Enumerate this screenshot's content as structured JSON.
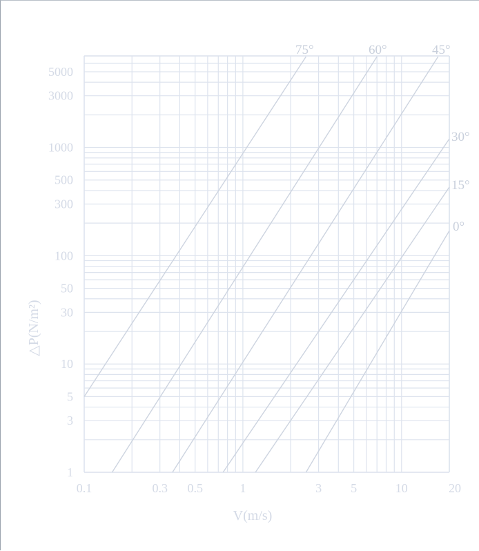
{
  "chart_data": {
    "type": "line",
    "xlabel": "V(m/s)",
    "ylabel": "△P(N/m²)",
    "x_scale": "log",
    "y_scale": "log",
    "xlim": [
      0.1,
      20
    ],
    "ylim": [
      1,
      7000
    ],
    "x_ticks": [
      {
        "value": 0.1,
        "label": "0.1"
      },
      {
        "value": 0.3,
        "label": "0.3"
      },
      {
        "value": 0.5,
        "label": "0.5"
      },
      {
        "value": 1,
        "label": "1"
      },
      {
        "value": 3,
        "label": "3"
      },
      {
        "value": 5,
        "label": "5"
      },
      {
        "value": 10,
        "label": "10"
      },
      {
        "value": 20,
        "label": "20"
      }
    ],
    "y_ticks": [
      {
        "value": 1,
        "label": "1"
      },
      {
        "value": 3,
        "label": "3"
      },
      {
        "value": 5,
        "label": "5"
      },
      {
        "value": 10,
        "label": "10"
      },
      {
        "value": 30,
        "label": "30"
      },
      {
        "value": 50,
        "label": "50"
      },
      {
        "value": 100,
        "label": "100"
      },
      {
        "value": 300,
        "label": "300"
      },
      {
        "value": 500,
        "label": "500"
      },
      {
        "value": 1000,
        "label": "1000"
      },
      {
        "value": 3000,
        "label": "3000"
      },
      {
        "value": 5000,
        "label": "5000"
      }
    ],
    "grid": true,
    "series": [
      {
        "name": "75°",
        "points": [
          [
            0.1,
            5
          ],
          [
            2.5,
            6900
          ]
        ]
      },
      {
        "name": "60°",
        "points": [
          [
            0.15,
            1
          ],
          [
            7.0,
            6900
          ]
        ]
      },
      {
        "name": "45°",
        "points": [
          [
            0.36,
            1
          ],
          [
            17.0,
            6900
          ]
        ]
      },
      {
        "name": "30°",
        "points": [
          [
            0.75,
            1
          ],
          [
            20,
            1200
          ]
        ]
      },
      {
        "name": "15°",
        "points": [
          [
            1.2,
            1
          ],
          [
            20,
            430
          ]
        ]
      },
      {
        "name": "0°",
        "points": [
          [
            2.5,
            1
          ],
          [
            20,
            170
          ]
        ]
      }
    ]
  },
  "colors": {
    "grid": "#dde3ee",
    "line": "#cdd4e0",
    "text": "#d4dae6",
    "angle_text": "#c9d0dc"
  }
}
